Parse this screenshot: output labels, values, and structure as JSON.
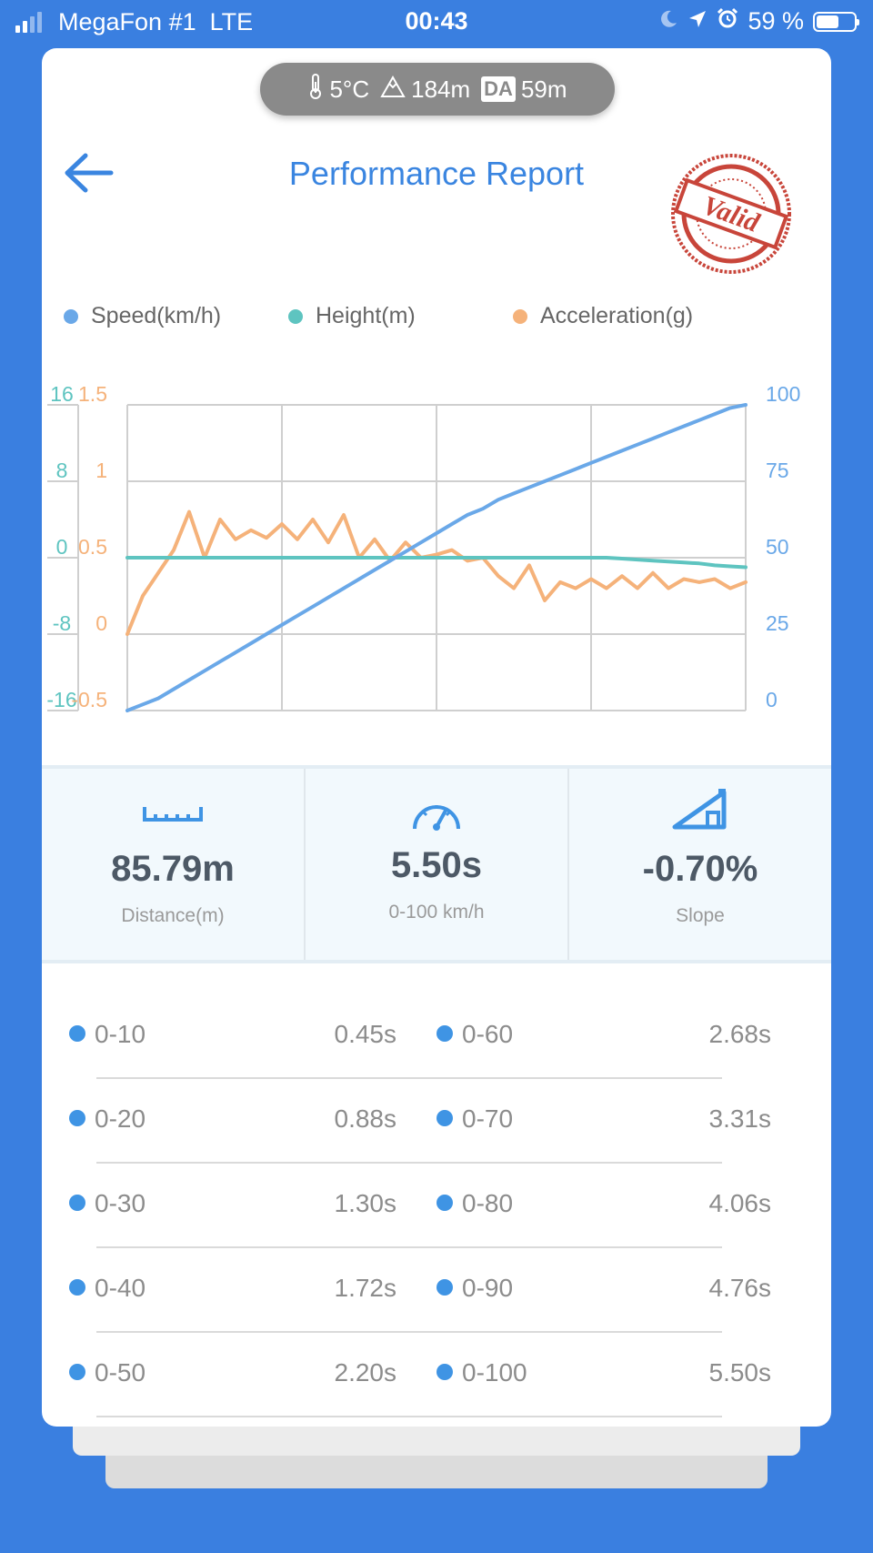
{
  "status_bar": {
    "carrier": "MegaFon #1",
    "network": "LTE",
    "time": "00:43",
    "battery": "59 %",
    "battery_level": 0.59
  },
  "conditions": {
    "temperature": "5°C",
    "altitude": "184m",
    "da_badge": "DA",
    "density_altitude": "59m"
  },
  "header": {
    "title": "Performance Report",
    "stamp_text": "Valid"
  },
  "legend": {
    "speed": "Speed(km/h)",
    "height": "Height(m)",
    "acceleration": "Acceleration(g)"
  },
  "colors": {
    "speed": "#6aa8e8",
    "height": "#5ec4c0",
    "acceleration": "#f5b27a",
    "accent": "#3a85e0",
    "stamp": "#c8453a",
    "background": "#3a7fe0"
  },
  "chart_data": {
    "type": "line",
    "x": [
      0,
      1,
      2,
      3,
      4,
      5,
      6,
      7,
      8,
      9,
      10,
      11,
      12,
      13,
      14,
      15,
      16,
      17,
      18,
      19,
      20,
      21,
      22,
      23,
      24,
      25,
      26,
      27,
      28,
      29,
      30,
      31,
      32,
      33,
      34,
      35,
      36,
      37,
      38,
      39,
      40
    ],
    "axes": {
      "height": {
        "ticks": [
          "16",
          "8",
          "0",
          "-8",
          "-16"
        ],
        "ylim": [
          -16,
          16
        ]
      },
      "acceleration": {
        "ticks": [
          "1.5",
          "1",
          "0.5",
          "0",
          "-0.5"
        ],
        "ylim": [
          -0.5,
          1.5
        ]
      },
      "speed": {
        "ticks": [
          "100",
          "75",
          "50",
          "25",
          "0"
        ],
        "ylim": [
          0,
          100
        ]
      }
    },
    "grid": true,
    "series": [
      {
        "name": "Speed(km/h)",
        "axis": "speed",
        "values": [
          0,
          2,
          4,
          7,
          10,
          13,
          16,
          19,
          22,
          25,
          28,
          31,
          34,
          37,
          40,
          43,
          46,
          49,
          52,
          55,
          58,
          61,
          64,
          66,
          69,
          71,
          73,
          75,
          77,
          79,
          81,
          83,
          85,
          87,
          89,
          91,
          93,
          95,
          97,
          99,
          100
        ]
      },
      {
        "name": "Height(m)",
        "axis": "height",
        "values": [
          0,
          0,
          0,
          0,
          0,
          0,
          0,
          0,
          0,
          0,
          0,
          0,
          0,
          0,
          0,
          0,
          0,
          0,
          0,
          0,
          0,
          0,
          0,
          0,
          0,
          0,
          0,
          0,
          0,
          0,
          0,
          0,
          -0.1,
          -0.2,
          -0.3,
          -0.4,
          -0.5,
          -0.6,
          -0.8,
          -0.9,
          -1.0
        ]
      },
      {
        "name": "Acceleration(g)",
        "axis": "acceleration",
        "values": [
          0,
          0.25,
          0.4,
          0.55,
          0.8,
          0.5,
          0.75,
          0.62,
          0.68,
          0.63,
          0.72,
          0.62,
          0.75,
          0.6,
          0.78,
          0.5,
          0.62,
          0.48,
          0.6,
          0.5,
          0.52,
          0.55,
          0.48,
          0.5,
          0.38,
          0.3,
          0.45,
          0.22,
          0.34,
          0.3,
          0.36,
          0.3,
          0.38,
          0.3,
          0.4,
          0.3,
          0.36,
          0.34,
          0.36,
          0.3,
          0.34
        ]
      }
    ]
  },
  "stats": [
    {
      "icon": "ruler-icon",
      "value": "85.79m",
      "label": "Distance(m)"
    },
    {
      "icon": "speedometer-icon",
      "value": "5.50s",
      "label": "0-100 km/h"
    },
    {
      "icon": "slope-icon",
      "value": "-0.70%",
      "label": "Slope"
    }
  ],
  "splits": [
    {
      "left_label": "0-10",
      "left_time": "0.45s",
      "right_label": "0-60",
      "right_time": "2.68s"
    },
    {
      "left_label": "0-20",
      "left_time": "0.88s",
      "right_label": "0-70",
      "right_time": "3.31s"
    },
    {
      "left_label": "0-30",
      "left_time": "1.30s",
      "right_label": "0-80",
      "right_time": "4.06s"
    },
    {
      "left_label": "0-40",
      "left_time": "1.72s",
      "right_label": "0-90",
      "right_time": "4.76s"
    },
    {
      "left_label": "0-50",
      "left_time": "2.20s",
      "right_label": "0-100",
      "right_time": "5.50s"
    }
  ]
}
